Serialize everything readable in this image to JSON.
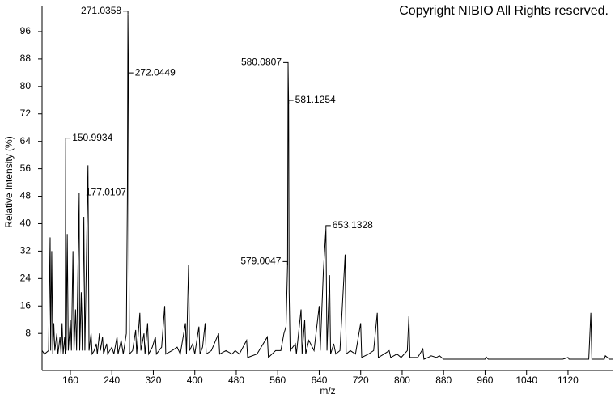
{
  "chart_data": {
    "type": "line",
    "copyright": "Copyright NIBIO All Rights reserved.",
    "y_label": "Relative Intensity (%)",
    "x_label": "m/z",
    "color": "#000000",
    "xlim": [
      105.4,
      1207.5
    ],
    "ylim": [
      -2.8,
      103.3
    ],
    "xticks": [
      160,
      240,
      320,
      400,
      480,
      560,
      640,
      720,
      800,
      880,
      960,
      1040,
      1120
    ],
    "yticks": [
      8,
      16,
      24,
      32,
      40,
      48,
      56,
      64,
      72,
      80,
      88,
      96
    ],
    "annotations": [
      150.9934,
      177.0107,
      271.0358,
      272.0449,
      579.0047,
      580.0807,
      581.1254,
      653.1328
    ],
    "x": [
      105.5,
      110,
      118,
      121,
      122,
      124,
      126,
      128,
      130,
      134,
      136,
      140,
      142,
      144,
      146,
      149,
      150,
      151,
      152,
      154,
      156,
      160,
      162,
      165,
      167,
      170,
      172,
      177,
      178,
      181,
      183,
      186,
      188,
      194,
      196,
      200,
      202,
      206,
      210,
      212,
      216,
      218,
      222,
      224,
      230,
      232,
      240,
      244,
      250,
      252,
      258,
      262,
      268,
      270,
      271,
      272,
      273,
      274,
      280,
      286,
      288,
      294,
      296,
      302,
      304,
      309,
      311,
      318,
      324,
      326,
      336,
      342,
      344,
      356,
      366,
      372,
      382,
      384,
      388,
      390,
      396,
      400,
      408,
      410,
      415,
      420,
      422,
      432,
      446,
      448,
      460,
      472,
      478,
      486,
      500,
      502,
      520,
      540,
      542,
      556,
      566,
      572,
      576,
      579,
      580,
      581,
      582,
      584,
      594,
      596,
      605,
      607,
      612,
      614,
      620,
      630,
      640,
      642,
      648,
      653,
      655,
      660,
      662,
      668,
      672,
      680,
      690,
      692,
      700,
      710,
      720,
      722,
      735,
      745,
      752,
      754,
      765,
      775,
      778,
      790,
      798,
      810,
      813,
      815,
      830,
      840,
      842,
      850,
      856,
      866,
      872,
      880,
      960,
      962,
      966,
      1110,
      1120,
      1122,
      1160,
      1164,
      1166,
      1190,
      1192,
      1200,
      1207
    ],
    "values": [
      3,
      2,
      3,
      36,
      3,
      32,
      2,
      11,
      3,
      8,
      2,
      7,
      2,
      11,
      2,
      7,
      2,
      64,
      3,
      37,
      3,
      12,
      3,
      32,
      3,
      15,
      3,
      48,
      3,
      20,
      3,
      42,
      3,
      57,
      3,
      8,
      2,
      3,
      5,
      2,
      8,
      3,
      7,
      2,
      5,
      2,
      4,
      2,
      7,
      2,
      6,
      2,
      8,
      48,
      101,
      83,
      30,
      2,
      3,
      9,
      2,
      14,
      3,
      8,
      2,
      11,
      2,
      4,
      7,
      2,
      4,
      16,
      2,
      3,
      4,
      2,
      11,
      2,
      28,
      3,
      5,
      2,
      10,
      2,
      4,
      11,
      2,
      3,
      8,
      2,
      3,
      2,
      3,
      2,
      6,
      1,
      2,
      7,
      1,
      3,
      3,
      8,
      10,
      28,
      86,
      75,
      20,
      3,
      5,
      2,
      15,
      2,
      12,
      2,
      6,
      3,
      16,
      3,
      26,
      38.5,
      3,
      25,
      2,
      5,
      2,
      3,
      31,
      2,
      3,
      2,
      11,
      1,
      2,
      3,
      14,
      1,
      2,
      3,
      1,
      2,
      1,
      3,
      13,
      1,
      1,
      3.5,
      0.5,
      1,
      1.5,
      1,
      1.5,
      0.5,
      0.5,
      1.2,
      0.5,
      0.5,
      1,
      0.5,
      0.5,
      14,
      0.5,
      0.5,
      1.5,
      0.5,
      0.5
    ]
  }
}
